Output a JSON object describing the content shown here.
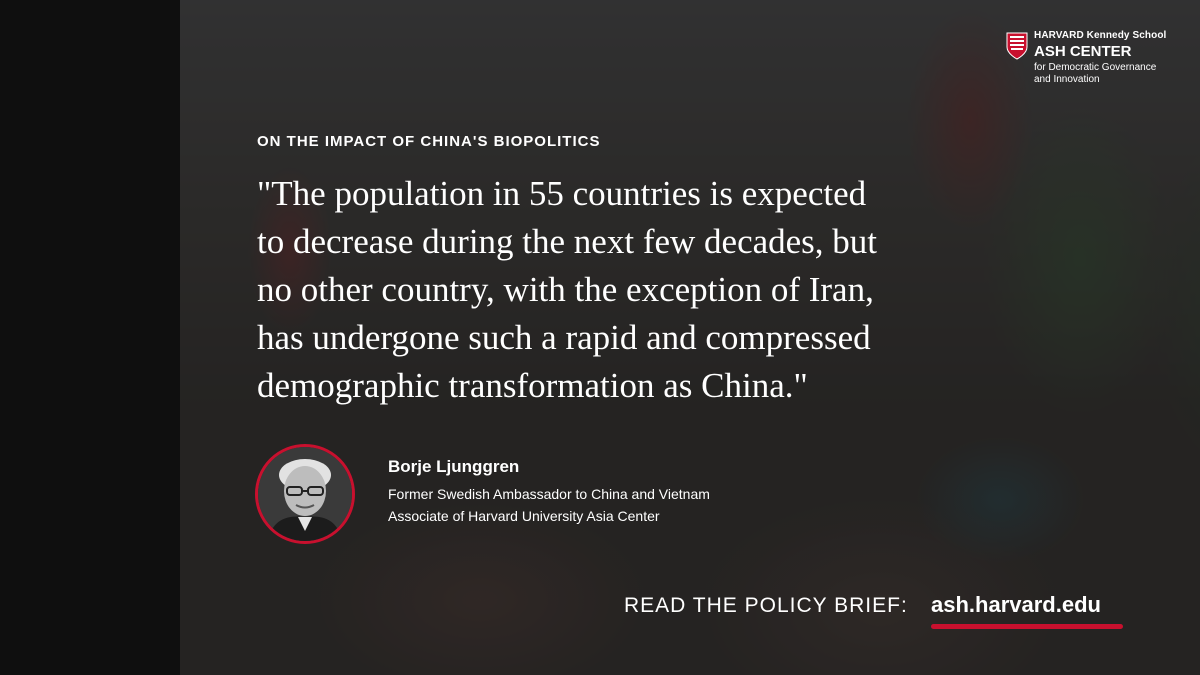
{
  "colors": {
    "accent": "#c8102e",
    "text": "#ffffff",
    "overlay": "#191919"
  },
  "logo": {
    "line1": "HARVARD Kennedy School",
    "line2": "ASH CENTER",
    "line3": "for Democratic Governance",
    "line4": "and Innovation",
    "icon": "harvard-shield-icon"
  },
  "kicker": "ON THE IMPACT OF CHINA'S BIOPOLITICS",
  "quote_lines": [
    "\"The population in 55 countries is expected",
    "to decrease during the next few decades, but",
    "no other country, with the exception of Iran,",
    "has undergone such a rapid and compressed",
    "demographic transformation as China.\""
  ],
  "speaker": {
    "name": "Borje Ljunggren",
    "role": "Former Swedish Ambassador to China and Vietnam",
    "affiliation": "Associate of Harvard University Asia Center",
    "avatar_icon": "speaker-portrait"
  },
  "cta": {
    "label": "READ THE POLICY BRIEF:",
    "link": "ash.harvard.edu"
  }
}
